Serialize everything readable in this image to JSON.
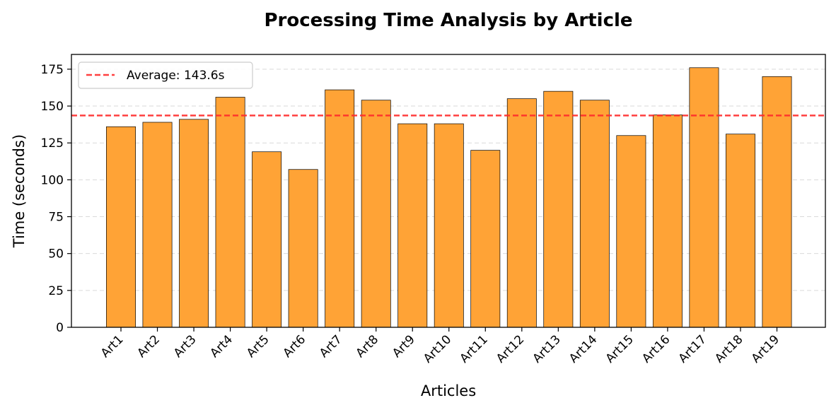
{
  "chart_data": {
    "type": "bar",
    "title": "Processing Time Analysis by Article",
    "xlabel": "Articles",
    "ylabel": "Time (seconds)",
    "categories": [
      "Art1",
      "Art2",
      "Art3",
      "Art4",
      "Art5",
      "Art6",
      "Art7",
      "Art8",
      "Art9",
      "Art10",
      "Art11",
      "Art12",
      "Art13",
      "Art14",
      "Art15",
      "Art16",
      "Art17",
      "Art18",
      "Art19"
    ],
    "values": [
      136,
      139,
      141,
      156,
      119,
      107,
      161,
      154,
      138,
      138,
      120,
      155,
      160,
      154,
      130,
      144,
      176,
      131,
      170
    ],
    "ylim": [
      0,
      185
    ],
    "yticks": [
      0,
      25,
      50,
      75,
      100,
      125,
      150,
      175
    ],
    "average": 143.6,
    "legend": {
      "label": "Average: 143.6s",
      "position": "top-left"
    },
    "grid": "y-dashed",
    "colors": {
      "bar": "#ffa336",
      "bar_edge": "#000000",
      "average_line": "#ff2b2b",
      "grid": "#d9d9d9"
    }
  }
}
